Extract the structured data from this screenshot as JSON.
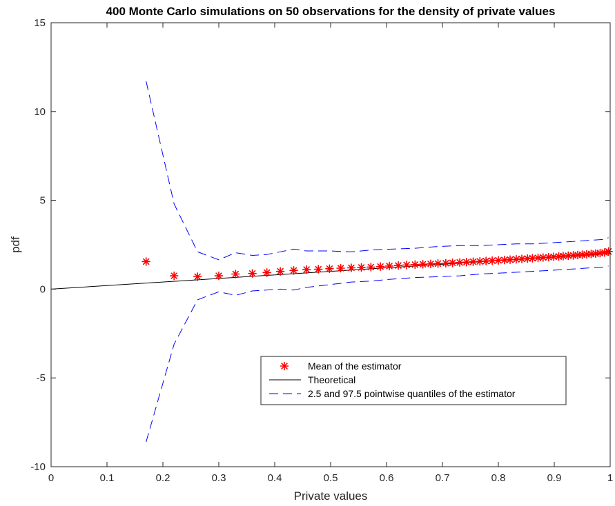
{
  "chart_data": {
    "type": "line",
    "title": "400 Monte Carlo simulations on 50 observations for the density of private values",
    "xlabel": "Private values",
    "ylabel": "pdf",
    "xlim": [
      0,
      1
    ],
    "ylim": [
      -10,
      15
    ],
    "xticks": [
      0,
      0.1,
      0.2,
      0.3,
      0.4,
      0.5,
      0.6,
      0.7,
      0.8,
      0.9,
      1
    ],
    "xtick_labels": [
      "0",
      "0.1",
      "0.2",
      "0.3",
      "0.4",
      "0.5",
      "0.6",
      "0.7",
      "0.8",
      "0.9",
      "1"
    ],
    "yticks": [
      -10,
      -5,
      0,
      5,
      10,
      15
    ],
    "ytick_labels": [
      "-10",
      "-5",
      "0",
      "5",
      "10",
      "15"
    ],
    "grid": false,
    "legend_position": "lower-right-center",
    "series": [
      {
        "name": "Mean of the estimator",
        "style": "marker-asterisk",
        "color": "#ff0000",
        "x": [
          0.17,
          0.22,
          0.262,
          0.3,
          0.33,
          0.36,
          0.386,
          0.41,
          0.434,
          0.457,
          0.478,
          0.498,
          0.518,
          0.537,
          0.555,
          0.572,
          0.589,
          0.605,
          0.621,
          0.636,
          0.651,
          0.665,
          0.679,
          0.692,
          0.706,
          0.718,
          0.731,
          0.743,
          0.755,
          0.767,
          0.778,
          0.789,
          0.8,
          0.811,
          0.821,
          0.832,
          0.842,
          0.852,
          0.861,
          0.871,
          0.88,
          0.89,
          0.899,
          0.908,
          0.916,
          0.925,
          0.934,
          0.942,
          0.95,
          0.958,
          0.966,
          0.974,
          0.982,
          0.99,
          0.997
        ],
        "y": [
          1.55,
          0.75,
          0.7,
          0.75,
          0.85,
          0.88,
          0.93,
          1.0,
          1.05,
          1.1,
          1.12,
          1.15,
          1.18,
          1.2,
          1.22,
          1.24,
          1.27,
          1.3,
          1.33,
          1.36,
          1.38,
          1.4,
          1.42,
          1.44,
          1.46,
          1.48,
          1.5,
          1.52,
          1.54,
          1.56,
          1.58,
          1.6,
          1.62,
          1.64,
          1.66,
          1.68,
          1.7,
          1.72,
          1.74,
          1.76,
          1.78,
          1.8,
          1.82,
          1.84,
          1.86,
          1.88,
          1.9,
          1.92,
          1.94,
          1.96,
          1.98,
          2.0,
          2.03,
          2.06,
          2.12
        ]
      },
      {
        "name": "Theoretical",
        "style": "solid",
        "color": "#000000",
        "x": [
          0,
          1
        ],
        "y": [
          0,
          2
        ]
      },
      {
        "name": "2.5 and 97.5 pointwise quantiles of the estimator",
        "style": "dashed",
        "color": "#0000ff",
        "bands": [
          {
            "x": [
              0.17,
              0.22,
              0.262,
              0.3,
              0.33,
              0.36,
              0.386,
              0.41,
              0.434,
              0.457,
              0.498,
              0.537,
              0.572,
              0.605,
              0.651,
              0.692,
              0.731,
              0.767,
              0.8,
              0.832,
              0.861,
              0.89,
              0.916,
              0.942,
              0.966,
              0.99,
              0.997
            ],
            "y": [
              11.7,
              4.8,
              2.1,
              1.65,
              2.05,
              1.9,
              1.95,
              2.1,
              2.25,
              2.15,
              2.15,
              2.1,
              2.2,
              2.25,
              2.3,
              2.4,
              2.45,
              2.45,
              2.5,
              2.55,
              2.55,
              2.6,
              2.65,
              2.7,
              2.75,
              2.8,
              2.9
            ]
          },
          {
            "x": [
              0.17,
              0.22,
              0.262,
              0.3,
              0.33,
              0.36,
              0.386,
              0.41,
              0.434,
              0.457,
              0.498,
              0.537,
              0.572,
              0.605,
              0.651,
              0.692,
              0.731,
              0.767,
              0.8,
              0.832,
              0.861,
              0.89,
              0.916,
              0.942,
              0.966,
              0.99,
              0.997
            ],
            "y": [
              -8.6,
              -3.1,
              -0.6,
              -0.15,
              -0.35,
              -0.1,
              -0.05,
              0.0,
              -0.05,
              0.1,
              0.25,
              0.4,
              0.45,
              0.55,
              0.65,
              0.7,
              0.75,
              0.85,
              0.9,
              0.95,
              1.0,
              1.05,
              1.1,
              1.15,
              1.2,
              1.25,
              1.3
            ]
          }
        ]
      }
    ]
  }
}
